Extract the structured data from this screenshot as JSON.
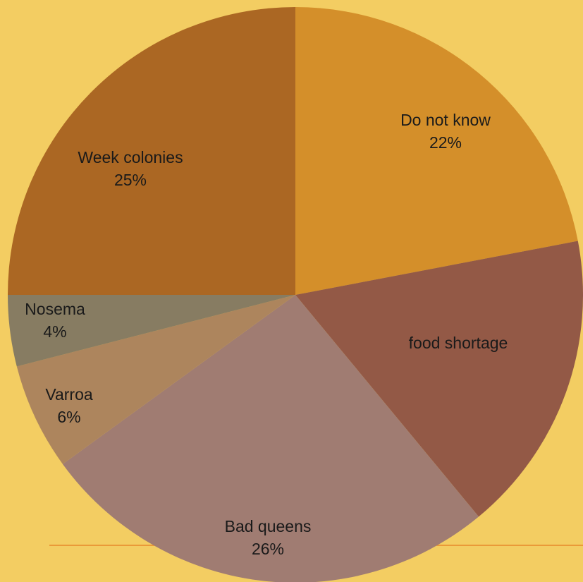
{
  "chart_data": {
    "type": "pie",
    "title": "",
    "start_angle_deg": 0,
    "direction": "clockwise",
    "slices": [
      {
        "label": "Do not know",
        "value": 22,
        "value_label": "22%",
        "color": "#d48f2a"
      },
      {
        "label": "food shortage",
        "value": 17,
        "value_label": "",
        "color": "#935946"
      },
      {
        "label": "Bad queens",
        "value": 26,
        "value_label": "26%",
        "color": "#a07c72"
      },
      {
        "label": "Varroa",
        "value": 6,
        "value_label": "6%",
        "color": "#ad855d"
      },
      {
        "label": "Nosema",
        "value": 4,
        "value_label": "4%",
        "color": "#877c62"
      },
      {
        "label": "Week colonies",
        "value": 25,
        "value_label": "25%",
        "color": "#ab6723"
      }
    ]
  },
  "colors": {
    "background": "#f3cd62",
    "divider_line": "#e8892b"
  }
}
